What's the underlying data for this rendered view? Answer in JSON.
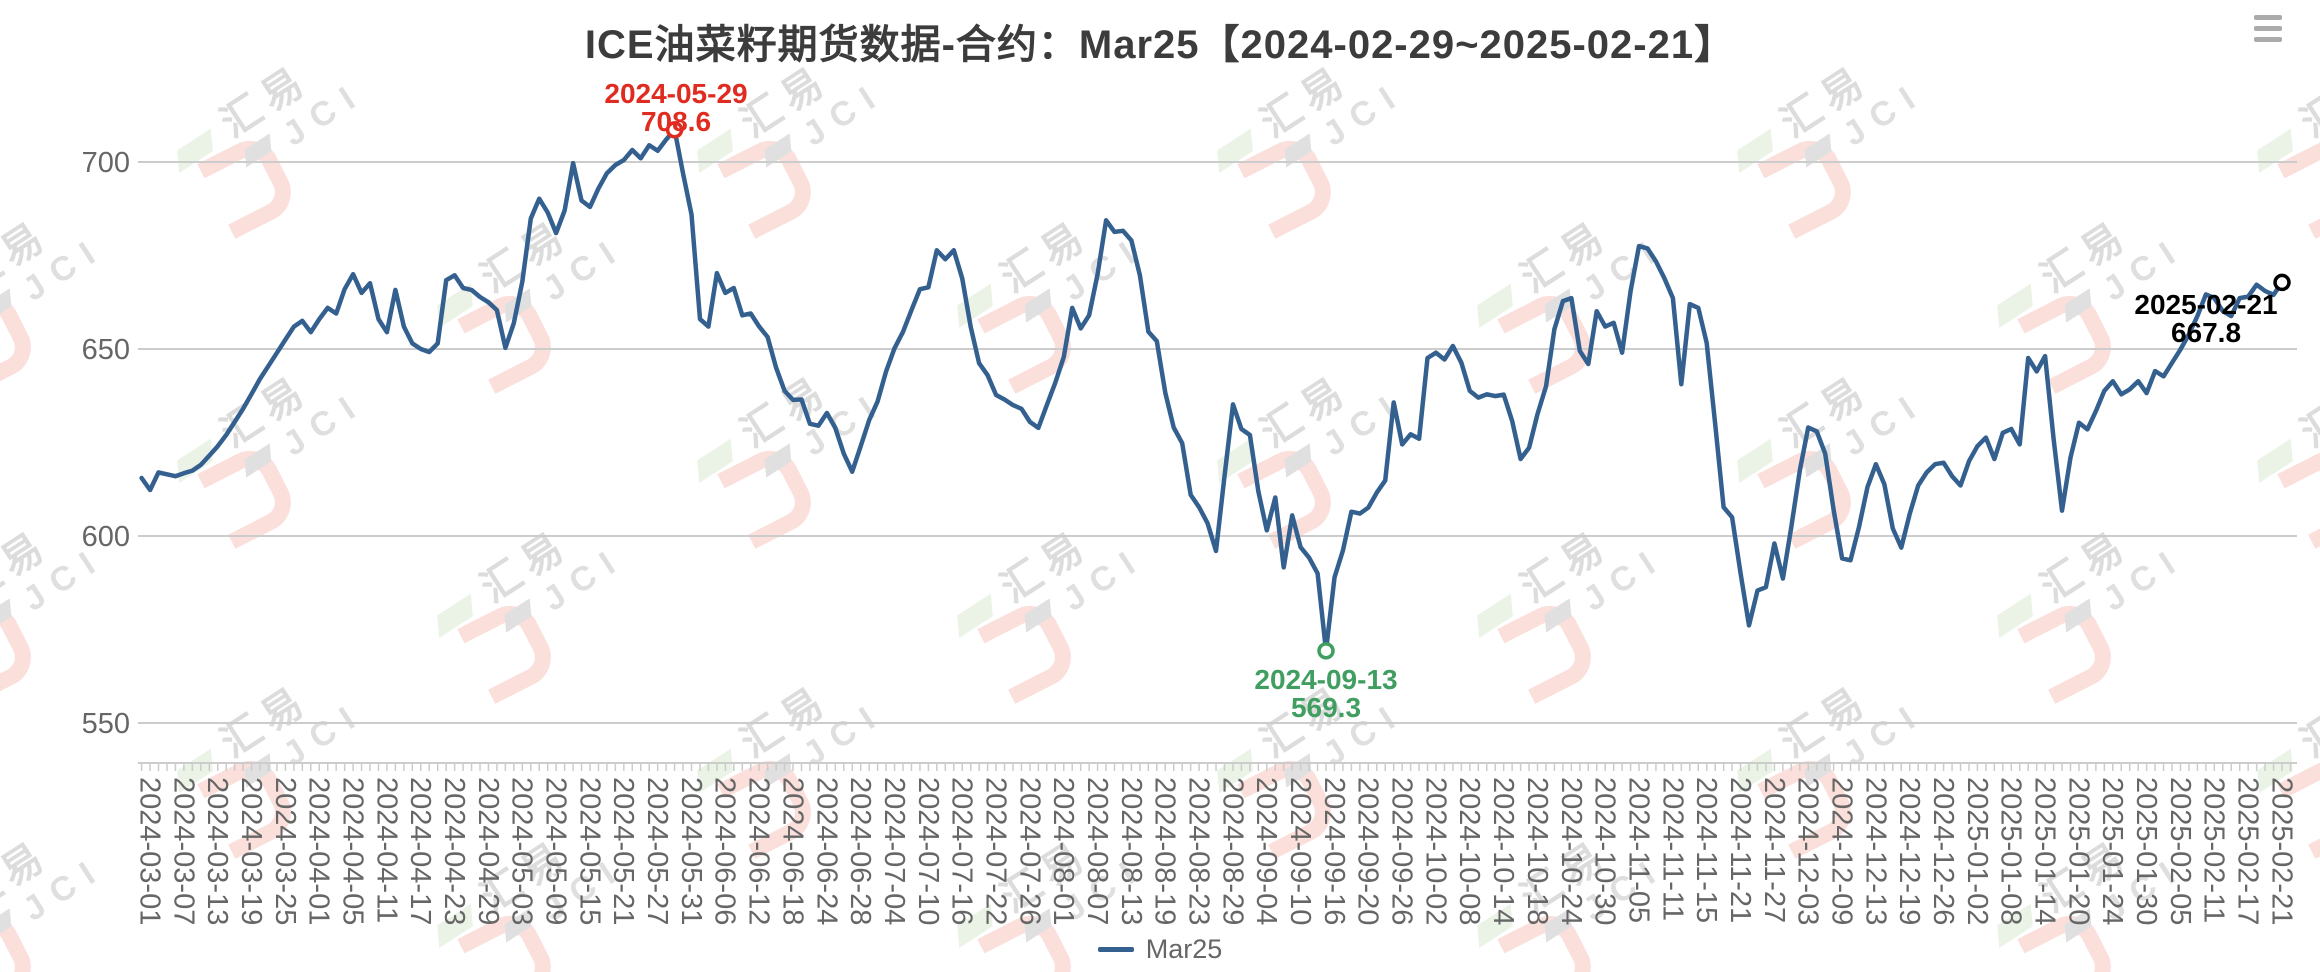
{
  "title": "ICE油菜籽期货数据-合约：Mar25【2024-02-29~2025-02-21】",
  "header": {
    "menu_icon": "hamburger-icon"
  },
  "watermark": {
    "brand_cn": "汇易",
    "brand_en": "JCI"
  },
  "legend": {
    "series_label": "Mar25"
  },
  "annotations": {
    "max": {
      "date": "2024-05-29",
      "value": "708.6"
    },
    "min": {
      "date": "2024-09-13",
      "value": "569.3"
    },
    "last": {
      "date": "2025-02-21",
      "value": "667.8"
    }
  },
  "chart_data": {
    "type": "line",
    "title": "ICE油菜籽期货数据-合约：Mar25【2024-02-29~2025-02-21】",
    "series_name": "Mar25",
    "line_color": "#34608f",
    "grid_color": "#cccccc",
    "axis_text_color": "#666666",
    "xlabel": "",
    "ylabel": "",
    "y_ticks": [
      550,
      600,
      650,
      700
    ],
    "ylim": [
      539,
      712
    ],
    "grid": true,
    "legend_position": "bottom",
    "x_tick_labels": [
      "2024-03-01",
      "2024-03-07",
      "2024-03-13",
      "2024-03-19",
      "2024-03-25",
      "2024-04-01",
      "2024-04-05",
      "2024-04-11",
      "2024-04-17",
      "2024-04-23",
      "2024-04-29",
      "2024-05-03",
      "2024-05-09",
      "2024-05-15",
      "2024-05-21",
      "2024-05-27",
      "2024-05-31",
      "2024-06-06",
      "2024-06-12",
      "2024-06-18",
      "2024-06-24",
      "2024-06-28",
      "2024-07-04",
      "2024-07-10",
      "2024-07-16",
      "2024-07-22",
      "2024-07-26",
      "2024-08-01",
      "2024-08-07",
      "2024-08-13",
      "2024-08-19",
      "2024-08-23",
      "2024-08-29",
      "2024-09-04",
      "2024-09-10",
      "2024-09-16",
      "2024-09-20",
      "2024-09-26",
      "2024-10-02",
      "2024-10-08",
      "2024-10-14",
      "2024-10-18",
      "2024-10-24",
      "2024-10-30",
      "2024-11-05",
      "2024-11-11",
      "2024-11-15",
      "2024-11-21",
      "2024-11-27",
      "2024-12-03",
      "2024-12-09",
      "2024-12-13",
      "2024-12-19",
      "2024-12-26",
      "2025-01-02",
      "2025-01-08",
      "2025-01-14",
      "2025-01-20",
      "2025-01-24",
      "2025-01-30",
      "2025-02-05",
      "2025-02-11",
      "2025-02-17",
      "2025-02-21"
    ],
    "x_tick_every": 4,
    "values": [
      615.5,
      612.3,
      617,
      616.5,
      616,
      616.8,
      617.5,
      619,
      621.5,
      624,
      627,
      630.5,
      634,
      638,
      642,
      645.5,
      649,
      652.5,
      656,
      657.5,
      654.5,
      658,
      661,
      659.5,
      666,
      670,
      665,
      667.6,
      658,
      654.5,
      665.8,
      656,
      651.5,
      650,
      649.2,
      651.5,
      668.4,
      669.7,
      666.3,
      665.8,
      663.9,
      662.5,
      660.4,
      650.3,
      656.9,
      668,
      684.9,
      690.2,
      686.5,
      681,
      687,
      699.7,
      689.7,
      688,
      692.9,
      697,
      699.2,
      700.5,
      703.2,
      701,
      704.5,
      703,
      706,
      708.6,
      697,
      686,
      658,
      656,
      670.3,
      665,
      666.3,
      659,
      659.5,
      656,
      653.2,
      645,
      638.8,
      636.4,
      636.5,
      630,
      629.5,
      632.9,
      628.9,
      622,
      617.2,
      624,
      631,
      636,
      644,
      650.2,
      654.6,
      660.4,
      666,
      666.5,
      676.4,
      674,
      676.4,
      668.9,
      655.9,
      646.2,
      643,
      637.7,
      636.5,
      635,
      634,
      630.5,
      628.9,
      635,
      641,
      647.9,
      661,
      655.5,
      659,
      670,
      684.4,
      681.3,
      681.6,
      679,
      669.7,
      654.6,
      652.1,
      638.3,
      629,
      624.8,
      611,
      607.7,
      603.4,
      596,
      616,
      635.2,
      628.6,
      627,
      612,
      601.5,
      610.3,
      591.6,
      605.5,
      597,
      594.2,
      590,
      569.3,
      588.9,
      596.1,
      606.5,
      606,
      607.6,
      611.6,
      614.8,
      635.7,
      624.5,
      627.2,
      626,
      647.6,
      649,
      647.2,
      650.8,
      646.3,
      638.8,
      637,
      637.9,
      637.4,
      637.8,
      630.8,
      620.6,
      623.6,
      632.6,
      640,
      655.3,
      662.8,
      663.6,
      649.5,
      646,
      660.1,
      656,
      657,
      649,
      665.5,
      677.5,
      676.9,
      673.4,
      668.9,
      663.6,
      640.6,
      662,
      661,
      651.6,
      629.9,
      607.7,
      605,
      590,
      576.1,
      585.4,
      586.3,
      598,
      588.6,
      602.4,
      617.5,
      629,
      628,
      622,
      607,
      594,
      593.5,
      602.4,
      613.1,
      619.2,
      613.8,
      602,
      596.9,
      606,
      613.5,
      617,
      619.2,
      619.6,
      616,
      613.5,
      620,
      624,
      626.3,
      620.6,
      627.6,
      628.6,
      624.5,
      647.6,
      644,
      648.1,
      626,
      606.8,
      621,
      630.3,
      628.5,
      633.4,
      638.8,
      641.4,
      637.9,
      639.2,
      641.4,
      638.2,
      644.1,
      642.7,
      646.3,
      649.9,
      653.9,
      658.8,
      664.6,
      663.6,
      660.1,
      658.8,
      663.6,
      664,
      667.2,
      665.5,
      664.5,
      667.8
    ],
    "markers": [
      {
        "kind": "max",
        "index": 63,
        "date": "2024-05-29",
        "value": 708.6,
        "color": "#e02b20"
      },
      {
        "kind": "min",
        "index": 140,
        "date": "2024-09-13",
        "value": 569.3,
        "color": "#3f9e60"
      },
      {
        "kind": "last",
        "index": 253,
        "date": "2025-02-21",
        "value": 667.8,
        "color": "#000000"
      }
    ]
  }
}
